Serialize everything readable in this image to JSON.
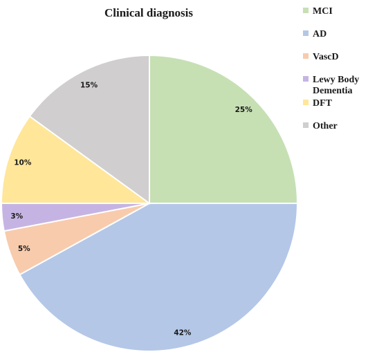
{
  "chart_data": {
    "type": "pie",
    "title": "Clinical diagnosis",
    "legend_position": "right",
    "slices": [
      {
        "label": "MCI",
        "value": 25,
        "data_label": "25%",
        "color": "#c6e0b4"
      },
      {
        "label": "AD",
        "value": 42,
        "data_label": "42%",
        "color": "#b4c7e7"
      },
      {
        "label": "VascD",
        "value": 5,
        "data_label": "5%",
        "color": "#f8cbad"
      },
      {
        "label": "Lewy Body Dementia",
        "value": 3,
        "data_label": "3%",
        "color": "#c5b4e3"
      },
      {
        "label": "DFT",
        "value": 10,
        "data_label": "10%",
        "color": "#ffe699"
      },
      {
        "label": "Other",
        "value": 15,
        "data_label": "15%",
        "color": "#d0cece"
      }
    ]
  }
}
